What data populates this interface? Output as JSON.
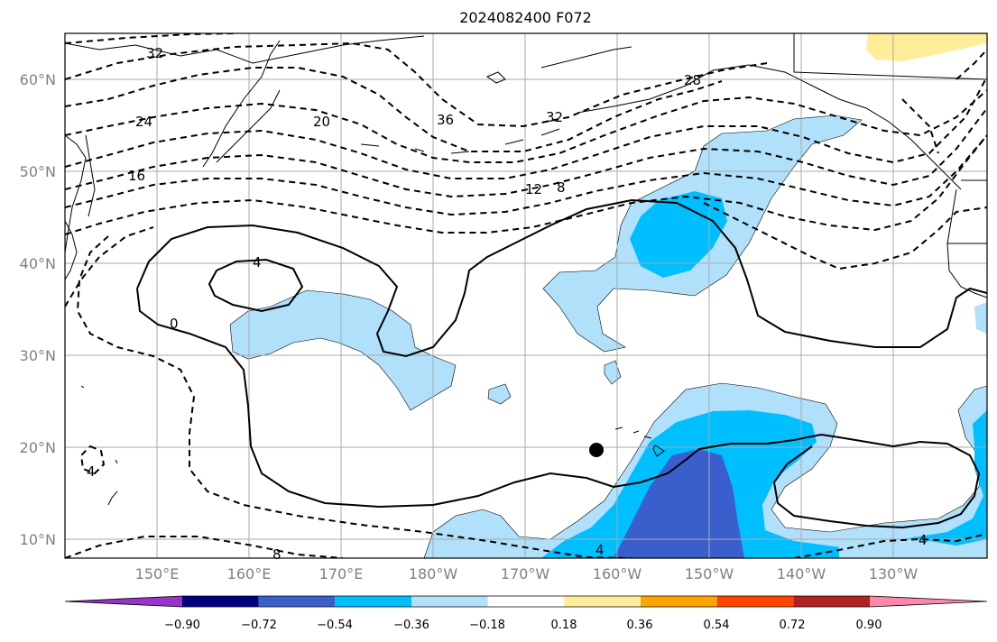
{
  "title": "2024082400 F072",
  "map": {
    "lat_labels": [
      "60°N",
      "50°N",
      "40°N",
      "30°N",
      "20°N",
      "10°N"
    ],
    "lon_labels": [
      "150°E",
      "160°E",
      "170°E",
      "180°W",
      "170°W",
      "160°W",
      "150°W",
      "140°W",
      "130°W"
    ],
    "contour_labels": [
      "32",
      "24",
      "16",
      "20",
      "36",
      "32",
      "28",
      "12",
      "8",
      "4",
      "0",
      "4",
      "8",
      "4",
      "4"
    ]
  },
  "colorbar": {
    "ticks": [
      "−0.90",
      "−0.72",
      "−0.54",
      "−0.36",
      "−0.18",
      "0.18",
      "0.36",
      "0.54",
      "0.72",
      "0.90"
    ],
    "colors": [
      "#9933cc",
      "#000080",
      "#3a5fcd",
      "#00bfff",
      "#b0e0fa",
      "#ffffff",
      "#ffee99",
      "#ffa500",
      "#ff4500",
      "#b22222",
      "#ff88aa"
    ]
  },
  "colors": {
    "light_blue": "#b0e0fa",
    "sky_blue": "#00bfff",
    "royal_blue": "#3a5fcd",
    "yellow": "#ffee99",
    "grid": "#aaaaaa"
  },
  "marker": "filled-circle"
}
